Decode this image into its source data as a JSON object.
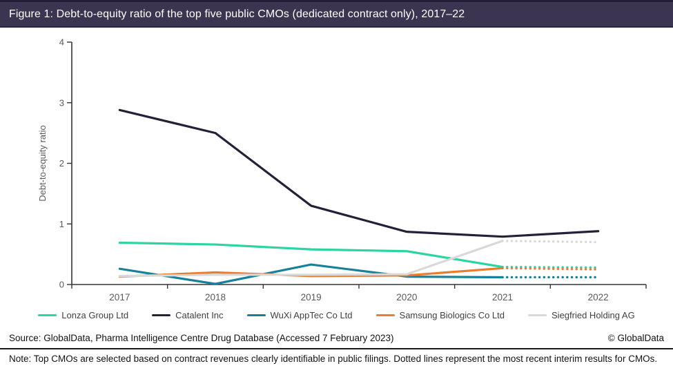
{
  "header": {
    "title": "Figure 1: Debt-to-equity ratio of the top five public CMOs (dedicated contract only), 2017–22",
    "background_color": "#3b3551"
  },
  "chart_data": {
    "type": "line",
    "title": "Debt-to-equity ratio of the top five public CMOs (dedicated contract only), 2017–22",
    "x": [
      "2017",
      "2018",
      "2019",
      "2020",
      "2021",
      "2022"
    ],
    "xlabel": "",
    "ylabel": "Debt-to-equity ratio",
    "ylim": [
      0,
      4
    ],
    "yticks": [
      0,
      1,
      2,
      3,
      4
    ],
    "grid": false,
    "legend_position": "bottom",
    "dotted_meaning": "Dotted segments (2021–22) are the most recent interim results",
    "series": [
      {
        "name": "Lonza Group Ltd",
        "color": "#2bd4a1",
        "values": [
          0.69,
          0.66,
          0.58,
          0.55,
          0.29,
          0.28
        ],
        "dotted_from_index": 4
      },
      {
        "name": "Catalent Inc",
        "color": "#232038",
        "values": [
          2.88,
          2.5,
          1.3,
          0.87,
          0.79,
          0.88
        ],
        "dotted_from_index": null
      },
      {
        "name": "WuXi AppTec Co Ltd",
        "color": "#17809b",
        "values": [
          0.26,
          0.01,
          0.33,
          0.13,
          0.12,
          0.12
        ],
        "dotted_from_index": 4
      },
      {
        "name": "Samsung Biologics Co Ltd",
        "color": "#ec7b30",
        "values": [
          0.13,
          0.2,
          0.14,
          0.15,
          0.27,
          0.25
        ],
        "dotted_from_index": 4
      },
      {
        "name": "Siegfried Holding AG",
        "color": "#d9d9d9",
        "values": [
          0.14,
          0.16,
          0.16,
          0.17,
          0.72,
          0.7
        ],
        "dotted_from_index": 4
      }
    ]
  },
  "footer": {
    "source": "Source: GlobalData, Pharma Intelligence Centre Drug Database (Accessed 7 February 2023)",
    "copyright": "© GlobalData",
    "note": "Note: Top CMOs are selected based on contract revenues clearly identifiable in public filings. Dotted lines represent the most recent interim results for CMOs."
  }
}
